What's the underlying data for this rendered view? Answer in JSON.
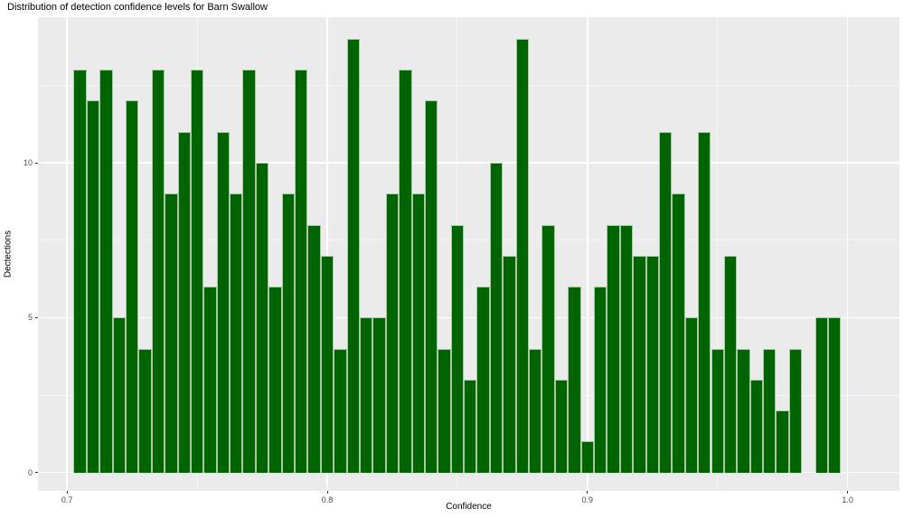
{
  "chart_data": {
    "type": "bar",
    "subtype": "histogram",
    "title": "Distribution of detection confidence levels for Barn Swallow",
    "xlabel": "Confidence",
    "ylabel": "Dectections",
    "legend": "none",
    "grid": "on",
    "panel_bg": "#EBEBEB",
    "grid_color": "#FFFFFF",
    "bar_color": "#006400",
    "bar_edge_color": "rgba(255,255,255,0.65)",
    "tick_label_color": "#4D4D4D",
    "xlim": [
      0.69,
      1.01
    ],
    "ylim": [
      0,
      14
    ],
    "x_ticks": [
      {
        "value": 0.7,
        "label": "0.7"
      },
      {
        "value": 0.8,
        "label": "0.8"
      },
      {
        "value": 0.9,
        "label": "0.9"
      },
      {
        "value": 1.0,
        "label": "1.0"
      }
    ],
    "x_minor_ticks": [
      0.75,
      0.85,
      0.95
    ],
    "y_ticks": [
      {
        "value": 0,
        "label": "0"
      },
      {
        "value": 5,
        "label": "5"
      },
      {
        "value": 10,
        "label": "10"
      }
    ],
    "y_minor_ticks": [
      2.5,
      7.5,
      12.5
    ],
    "bin_start": 0.7025,
    "bin_width": 0.005,
    "counts": [
      13,
      12,
      13,
      5,
      12,
      4,
      13,
      9,
      11,
      13,
      6,
      11,
      9,
      13,
      10,
      6,
      9,
      13,
      8,
      7,
      4,
      14,
      5,
      5,
      9,
      13,
      9,
      12,
      4,
      8,
      3,
      6,
      10,
      7,
      14,
      4,
      8,
      3,
      6,
      1,
      6,
      8,
      8,
      7,
      7,
      11,
      9,
      5,
      11,
      4,
      7,
      4,
      3,
      4,
      2,
      4,
      0,
      5,
      5
    ]
  }
}
